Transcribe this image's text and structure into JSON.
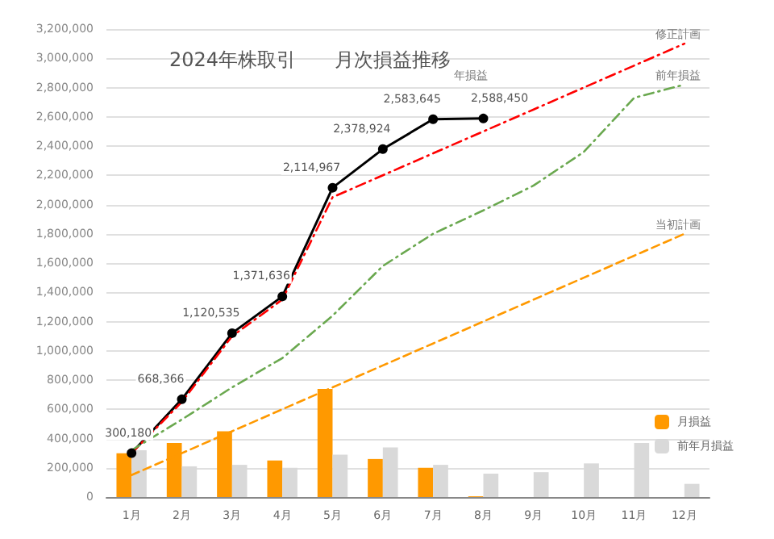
{
  "chart_data": {
    "type": "bar",
    "title": "2024年株取引　　月次損益推移",
    "categories": [
      "1月",
      "2月",
      "3月",
      "4月",
      "5月",
      "6月",
      "7月",
      "8月",
      "9月",
      "10月",
      "11月",
      "12月"
    ],
    "series": [
      {
        "name": "月損益",
        "color": "#ff9900",
        "values": [
          300000,
          370000,
          450000,
          250000,
          740000,
          260000,
          200000,
          5000,
          null,
          null,
          null,
          null
        ]
      },
      {
        "name": "前年月損益",
        "color": "#d9d9d9",
        "values": [
          320000,
          210000,
          220000,
          200000,
          290000,
          340000,
          220000,
          160000,
          170000,
          230000,
          370000,
          90000
        ]
      },
      {
        "name": "年損益",
        "type": "line",
        "color": "#000000",
        "marker": "circle",
        "line_style": "solid",
        "values": [
          300180,
          668366,
          1120535,
          1371636,
          2114967,
          2378924,
          2583645,
          2588450,
          null,
          null,
          null,
          null
        ],
        "value_labels": [
          "300,180",
          "668,366",
          "1,120,535",
          "1,371,636",
          "2,114,967",
          "2,378,924",
          "2,583,645",
          "2,588,450",
          null,
          null,
          null,
          null
        ]
      },
      {
        "name": "修正計画",
        "type": "line",
        "color": "#ff0000",
        "marker": "none",
        "line_style": "dashdot",
        "values": [
          300000,
          650000,
          1100000,
          1350000,
          2050000,
          2200000,
          2350000,
          2500000,
          2650000,
          2800000,
          2950000,
          3100000
        ]
      },
      {
        "name": "前年損益",
        "type": "line",
        "color": "#6aa84f",
        "marker": "none",
        "line_style": "dashdot",
        "values": [
          320000,
          530000,
          750000,
          950000,
          1240000,
          1580000,
          1800000,
          1960000,
          2130000,
          2360000,
          2730000,
          2820000
        ]
      },
      {
        "name": "当初計画",
        "type": "line",
        "color": "#ff9900",
        "marker": "none",
        "line_style": "dashed",
        "values": [
          150000,
          300000,
          450000,
          600000,
          750000,
          900000,
          1050000,
          1200000,
          1350000,
          1500000,
          1650000,
          1800000
        ]
      }
    ],
    "ylim": [
      0,
      3200000
    ],
    "yticks": [
      0,
      {
        "value": 200000,
        "label": "200,000"
      },
      {
        "value": 400000,
        "label": "400,000"
      },
      {
        "value": 600000,
        "label": "600,000"
      },
      {
        "value": 800000,
        "label": "800,000"
      },
      {
        "value": 1000000,
        "label": "1,000,000"
      },
      {
        "value": 1200000,
        "label": "1,200,000"
      },
      {
        "value": 1400000,
        "label": "1,400,000"
      },
      {
        "value": 1600000,
        "label": "1,600,000"
      },
      {
        "value": 1800000,
        "label": "1,800,000"
      },
      {
        "value": 2000000,
        "label": "2,000,000"
      },
      {
        "value": 2200000,
        "label": "2,200,000"
      },
      {
        "value": 2400000,
        "label": "2,400,000"
      },
      {
        "value": 2600000,
        "label": "2,600,000"
      },
      {
        "value": 2800000,
        "label": "2,800,000"
      },
      {
        "value": 3000000,
        "label": "3,000,000"
      },
      {
        "value": 3200000,
        "label": "3,200,000"
      }
    ],
    "grid": "y",
    "legend": "bottom right"
  }
}
